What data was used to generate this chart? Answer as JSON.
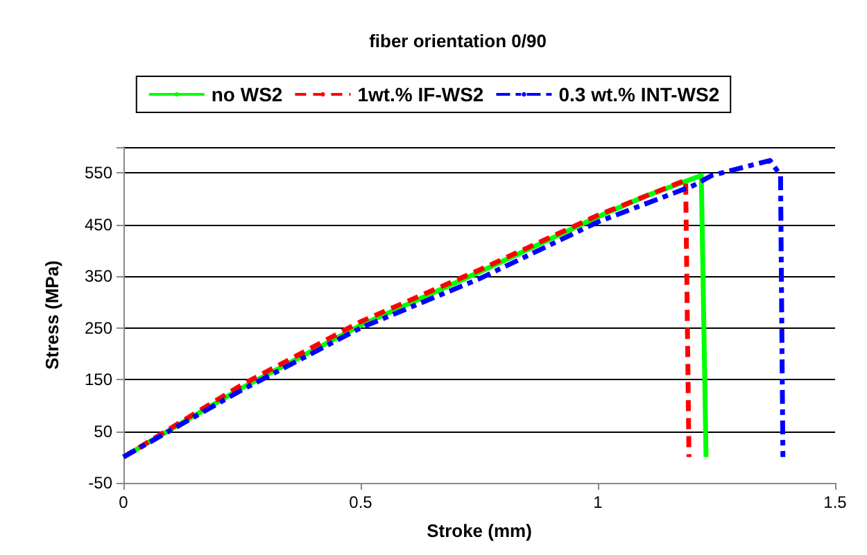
{
  "chart_data": {
    "type": "line",
    "title": "fiber orientation 0/90",
    "xlabel": "Stroke (mm)",
    "ylabel": "Stress (MPa)",
    "xlim": [
      0,
      1.5
    ],
    "xticks": [
      0,
      0.5,
      1,
      1.5
    ],
    "ylim": [
      -50,
      600
    ],
    "yticks": [
      -50,
      50,
      150,
      250,
      350,
      450,
      550,
      {
        "value": 600,
        "label": null
      }
    ],
    "grid": "y",
    "legend": "top",
    "marker": "none",
    "series": [
      {
        "name": "no WS2",
        "color": "#00ff00",
        "line_style": "solid",
        "x": [
          0,
          0.25,
          0.5,
          0.75,
          1,
          1.1,
          1.218,
          1.228
        ],
        "values": [
          0,
          134,
          255,
          358,
          465,
          505,
          545,
          0
        ]
      },
      {
        "name": "1wt.% IF-WS2",
        "color": "#ff0000",
        "line_style": "dashed",
        "x": [
          0,
          0.25,
          0.5,
          0.75,
          1,
          1.185,
          1.192
        ],
        "values": [
          0,
          140,
          262,
          362,
          468,
          536,
          0
        ]
      },
      {
        "name": "0.3 wt.% INT-WS2",
        "color": "#0000ff",
        "line_style": "dotted",
        "x": [
          0,
          0.25,
          0.5,
          0.75,
          1,
          1.2,
          1.24,
          1.363,
          1.385,
          1.39
        ],
        "values": [
          0,
          130,
          250,
          345,
          455,
          525,
          545,
          574,
          545,
          0
        ]
      }
    ]
  }
}
